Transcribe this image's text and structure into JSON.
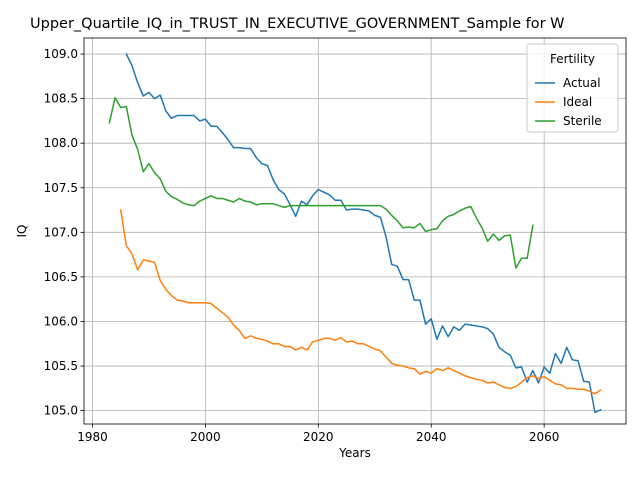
{
  "chart_data": {
    "type": "line",
    "title": "Upper_Quartile_IQ_in_TRUST_IN_EXECUTIVE_GOVERNMENT_Sample for W",
    "xlabel": "Years",
    "ylabel": "IQ",
    "xlim": [
      1978.5,
      2074.5
    ],
    "ylim": [
      104.85,
      109.18
    ],
    "xticks": [
      1980,
      2000,
      2020,
      2040,
      2060
    ],
    "yticks": [
      105.0,
      105.5,
      106.0,
      106.5,
      107.0,
      107.5,
      108.0,
      108.5,
      109.0
    ],
    "grid": true,
    "legend": {
      "title": "Fertility",
      "position": "upper right"
    },
    "series": [
      {
        "name": "Actual",
        "color": "#1f77b4",
        "x": [
          1986,
          1987,
          1988,
          1989,
          1990,
          1991,
          1992,
          1993,
          1994,
          1995,
          1996,
          1997,
          1998,
          1999,
          2000,
          2001,
          2002,
          2003,
          2004,
          2005,
          2006,
          2007,
          2008,
          2009,
          2010,
          2011,
          2012,
          2013,
          2014,
          2015,
          2016,
          2017,
          2018,
          2019,
          2020,
          2021,
          2022,
          2023,
          2024,
          2025,
          2026,
          2027,
          2028,
          2029,
          2030,
          2031,
          2032,
          2033,
          2034,
          2035,
          2036,
          2037,
          2038,
          2039,
          2040,
          2041,
          2042,
          2043,
          2044,
          2045,
          2046,
          2047,
          2048,
          2049,
          2050,
          2051,
          2052,
          2053,
          2054,
          2055,
          2056,
          2057,
          2058,
          2059,
          2060,
          2061,
          2062,
          2063,
          2064,
          2065,
          2066,
          2067,
          2068,
          2069,
          2070
        ],
        "values": [
          109.0,
          108.87,
          108.68,
          108.53,
          108.57,
          108.5,
          108.54,
          108.36,
          108.28,
          108.31,
          108.31,
          108.31,
          108.31,
          108.25,
          108.27,
          108.19,
          108.19,
          108.12,
          108.04,
          107.95,
          107.95,
          107.94,
          107.94,
          107.84,
          107.77,
          107.75,
          107.59,
          107.48,
          107.43,
          107.31,
          107.18,
          107.35,
          107.31,
          107.41,
          107.48,
          107.45,
          107.42,
          107.36,
          107.36,
          107.25,
          107.26,
          107.26,
          107.25,
          107.24,
          107.19,
          107.17,
          106.95,
          106.64,
          106.62,
          106.47,
          106.47,
          106.24,
          106.24,
          105.97,
          106.03,
          105.8,
          105.95,
          105.83,
          105.94,
          105.9,
          105.97,
          105.96,
          105.95,
          105.94,
          105.92,
          105.86,
          105.71,
          105.66,
          105.62,
          105.48,
          105.49,
          105.32,
          105.45,
          105.31,
          105.49,
          105.42,
          105.64,
          105.53,
          105.71,
          105.57,
          105.56,
          105.33,
          105.32,
          104.98,
          105.01
        ]
      },
      {
        "name": "Ideal",
        "color": "#ff7f0e",
        "x": [
          1985,
          1986,
          1987,
          1988,
          1989,
          1990,
          1991,
          1992,
          1993,
          1994,
          1995,
          1996,
          1997,
          1998,
          1999,
          2000,
          2001,
          2002,
          2003,
          2004,
          2005,
          2006,
          2007,
          2008,
          2009,
          2010,
          2011,
          2012,
          2013,
          2014,
          2015,
          2016,
          2017,
          2018,
          2019,
          2020,
          2021,
          2022,
          2023,
          2024,
          2025,
          2026,
          2027,
          2028,
          2029,
          2030,
          2031,
          2032,
          2033,
          2034,
          2035,
          2036,
          2037,
          2038,
          2039,
          2040,
          2041,
          2042,
          2043,
          2044,
          2045,
          2046,
          2047,
          2048,
          2049,
          2050,
          2051,
          2052,
          2053,
          2054,
          2055,
          2056,
          2057,
          2058,
          2059,
          2060,
          2061,
          2062,
          2063,
          2064,
          2065,
          2066,
          2067,
          2068,
          2069,
          2070
        ],
        "values": [
          107.25,
          106.85,
          106.76,
          106.58,
          106.69,
          106.68,
          106.66,
          106.46,
          106.36,
          106.29,
          106.24,
          106.23,
          106.21,
          106.21,
          106.21,
          106.21,
          106.2,
          106.15,
          106.1,
          106.05,
          105.96,
          105.9,
          105.81,
          105.84,
          105.81,
          105.8,
          105.78,
          105.75,
          105.75,
          105.72,
          105.72,
          105.68,
          105.71,
          105.68,
          105.77,
          105.79,
          105.81,
          105.81,
          105.79,
          105.82,
          105.77,
          105.78,
          105.75,
          105.75,
          105.72,
          105.69,
          105.67,
          105.6,
          105.53,
          105.51,
          105.5,
          105.48,
          105.47,
          105.41,
          105.44,
          105.42,
          105.47,
          105.45,
          105.48,
          105.45,
          105.42,
          105.39,
          105.37,
          105.35,
          105.34,
          105.31,
          105.32,
          105.29,
          105.26,
          105.25,
          105.27,
          105.32,
          105.37,
          105.39,
          105.36,
          105.38,
          105.34,
          105.3,
          105.29,
          105.25,
          105.25,
          105.24,
          105.24,
          105.22,
          105.19,
          105.23
        ]
      },
      {
        "name": "Sterile",
        "color": "#2ca02c",
        "x": [
          1983,
          1984,
          1985,
          1986,
          1987,
          1988,
          1989,
          1990,
          1991,
          1992,
          1993,
          1994,
          1995,
          1996,
          1997,
          1998,
          1999,
          2000,
          2001,
          2002,
          2003,
          2004,
          2005,
          2006,
          2007,
          2008,
          2009,
          2010,
          2011,
          2012,
          2013,
          2014,
          2015,
          2016,
          2017,
          2018,
          2019,
          2020,
          2021,
          2022,
          2023,
          2024,
          2025,
          2026,
          2027,
          2028,
          2029,
          2030,
          2031,
          2032,
          2033,
          2034,
          2035,
          2036,
          2037,
          2038,
          2039,
          2040,
          2041,
          2042,
          2043,
          2044,
          2045,
          2046,
          2047,
          2048,
          2049,
          2050,
          2051,
          2052,
          2053,
          2054,
          2055,
          2056,
          2057,
          2058
        ],
        "values": [
          108.23,
          108.51,
          108.4,
          108.41,
          108.09,
          107.93,
          107.68,
          107.77,
          107.67,
          107.6,
          107.46,
          107.4,
          107.37,
          107.33,
          107.31,
          107.3,
          107.35,
          107.38,
          107.41,
          107.38,
          107.38,
          107.36,
          107.34,
          107.38,
          107.35,
          107.34,
          107.31,
          107.32,
          107.32,
          107.32,
          107.3,
          107.28,
          107.3,
          107.3,
          107.3,
          107.3,
          107.3,
          107.3,
          107.3,
          107.3,
          107.3,
          107.3,
          107.3,
          107.3,
          107.3,
          107.3,
          107.3,
          107.3,
          107.3,
          107.26,
          107.19,
          107.13,
          107.05,
          107.06,
          107.05,
          107.1,
          107.01,
          107.03,
          107.04,
          107.13,
          107.18,
          107.2,
          107.24,
          107.27,
          107.29,
          107.16,
          107.05,
          106.9,
          106.98,
          106.91,
          106.96,
          106.97,
          106.6,
          106.71,
          106.71,
          107.08
        ]
      }
    ]
  }
}
